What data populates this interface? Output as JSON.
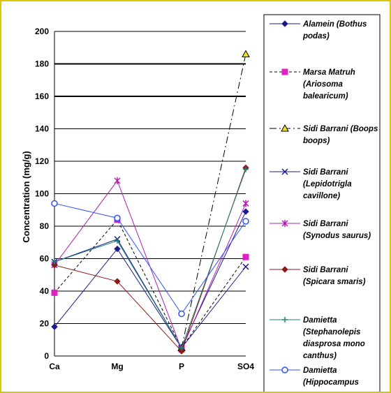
{
  "chart_data": {
    "type": "line",
    "categories": [
      "Ca",
      "Mg",
      "P",
      "SO4"
    ],
    "ylabel": "Concentration (mg/g)",
    "ylim": [
      0,
      200
    ],
    "yticks": [
      0,
      20,
      40,
      60,
      80,
      100,
      120,
      140,
      160,
      180,
      200
    ],
    "grid": true,
    "legend_position": "right",
    "series": [
      {
        "name": "Alamein (Bothus podas)",
        "values": [
          18,
          66,
          5,
          89
        ],
        "color": "#1a1a8c",
        "marker": "diamond",
        "dash": "solid"
      },
      {
        "name": "Marsa Matruh (Ariosoma balearicum)",
        "values": [
          39,
          84,
          5,
          61
        ],
        "color": "#000000",
        "markerColor": "#e020c0",
        "marker": "square",
        "dash": "dashed"
      },
      {
        "name": "Sidi Barrani (Boops boops)",
        "values": [
          null,
          null,
          5,
          186
        ],
        "color": "#000000",
        "markerColor": "#f0e020",
        "marker": "triangle",
        "dash": "longdash"
      },
      {
        "name": "Sidi Barrani (Lepidotrigla cavillone)",
        "values": [
          58,
          72,
          5,
          55
        ],
        "color": "#1a1a8c",
        "marker": "x",
        "dash": "solid"
      },
      {
        "name": "Sidi Barrani (Synodus saurus)",
        "values": [
          56,
          108,
          4,
          94
        ],
        "color": "#b020b0",
        "marker": "star",
        "dash": "solid"
      },
      {
        "name": "Sidi Barrani (Spicara smaris)",
        "values": [
          56,
          46,
          3,
          116
        ],
        "color": "#8b1a1a",
        "marker": "diamond",
        "dash": "solid"
      },
      {
        "name": "Damietta (Stephanolepis diasprosa mono canthus)",
        "values": [
          58,
          71,
          5,
          115
        ],
        "color": "#208070",
        "marker": "plus",
        "dash": "solid"
      },
      {
        "name": "Damietta (Hippocampus",
        "values": [
          94,
          85,
          26,
          83
        ],
        "color": "#3050ff",
        "marker": "circle",
        "dash": "solid"
      }
    ]
  },
  "legend": {
    "entries": [
      {
        "lines": [
          "Alamein  (Bothus",
          "podas)"
        ]
      },
      {
        "lines": [
          "Marsa Matruh",
          "(Ariosoma",
          "balearicum)"
        ]
      },
      {
        "lines": [
          "Sidi Barrani (Boops",
          "boops)"
        ]
      },
      {
        "lines": [
          "Sidi Barrani",
          "(Lepidotrigla",
          "cavillone)"
        ]
      },
      {
        "lines": [
          "Sidi Barrani",
          "(Synodus saurus)"
        ]
      },
      {
        "lines": [
          "Sidi Barrani",
          "(Spicara smaris)"
        ]
      },
      {
        "lines": [
          "Damietta",
          "(Stephanolepis",
          "diasprosa mono",
          "canthus)"
        ]
      },
      {
        "lines": [
          "Damietta",
          "(Hippocampus"
        ]
      }
    ]
  }
}
